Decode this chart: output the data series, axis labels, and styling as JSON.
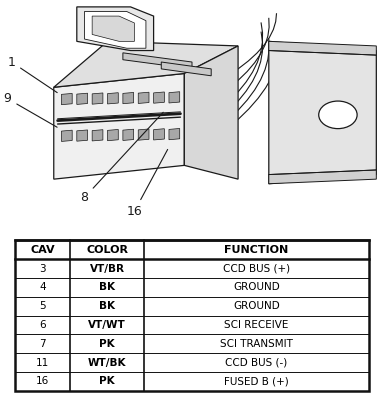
{
  "table_headers": [
    "CAV",
    "COLOR",
    "FUNCTION"
  ],
  "table_data": [
    [
      "3",
      "VT/BR",
      "CCD BUS (+)"
    ],
    [
      "4",
      "BK",
      "GROUND"
    ],
    [
      "5",
      "BK",
      "GROUND"
    ],
    [
      "6",
      "VT/WT",
      "SCI RECEIVE"
    ],
    [
      "7",
      "PK",
      "SCI TRANSMIT"
    ],
    [
      "11",
      "WT/BK",
      "CCD BUS (-)"
    ],
    [
      "16",
      "PK",
      "FUSED B (+)"
    ]
  ],
  "bg_color": "#f5f5f0",
  "lc": "#1a1a1a"
}
